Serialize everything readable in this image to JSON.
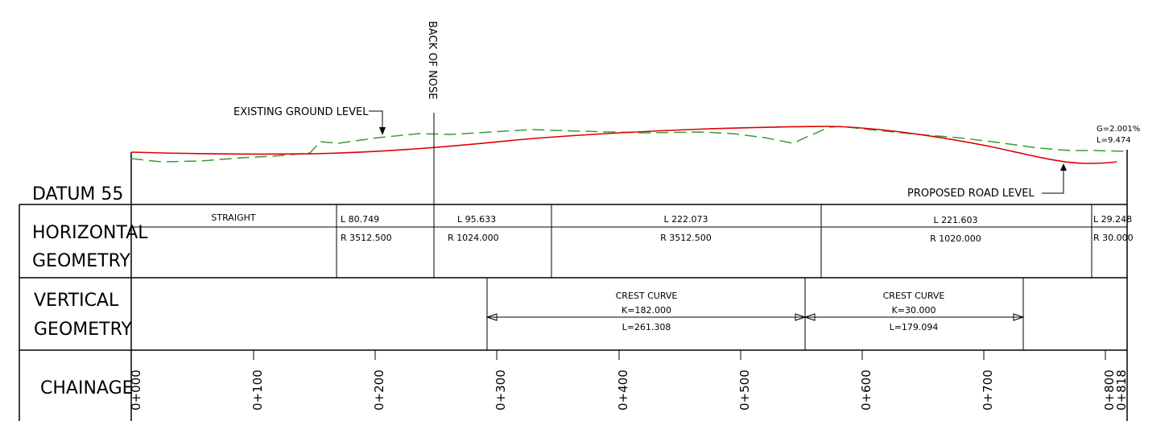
{
  "labels": {
    "back_of_nose": "BACK OF NOSE",
    "existing_ground": "EXISTING GROUND LEVEL",
    "proposed_road": "PROPOSED ROAD LEVEL",
    "datum": "DATUM 55",
    "end_grade_g": "G=2.001%",
    "end_grade_l": "L=9.474"
  },
  "colors": {
    "proposed_road": "#e00000",
    "existing_ground": "#3a9a3a",
    "line": "#000000"
  },
  "rows": {
    "horizontal": [
      "HORIZONTAL",
      "GEOMETRY"
    ],
    "vertical": [
      "VERTICAL",
      "GEOMETRY"
    ],
    "chainage": "CHAINAGE"
  },
  "horizontal_geometry": [
    {
      "top": "STRAIGHT",
      "bottom": ""
    },
    {
      "top": "L  80.749",
      "bottom": "R  3512.500"
    },
    {
      "top": "L  95.633",
      "bottom": "R  1024.000"
    },
    {
      "top": "L  222.073",
      "bottom": "R  3512.500"
    },
    {
      "top": "L  221.603",
      "bottom": "R  1020.000"
    },
    {
      "top": "L  29.248",
      "bottom": "R  30.000"
    }
  ],
  "vertical_geometry": [
    {
      "title": "CREST  CURVE",
      "k": "K=182.000",
      "l": "L=261.308"
    },
    {
      "title": "CREST  CURVE",
      "k": "K=30.000",
      "l": "L=179.094"
    }
  ],
  "chainages": [
    "0+000",
    "0+100",
    "0+200",
    "0+300",
    "0+400",
    "0+500",
    "0+600",
    "0+700",
    "0+800",
    "0+818"
  ]
}
